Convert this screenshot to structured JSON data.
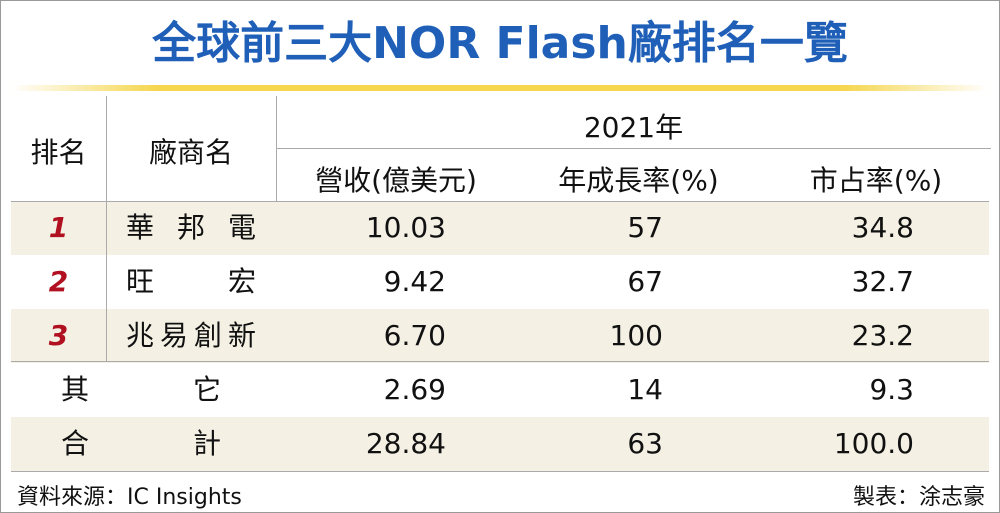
{
  "header": {
    "title": "全球前三大NOR Flash廠排名一覽"
  },
  "table": {
    "columns": [
      "排名",
      "廠商名",
      "2021年",
      "營收(億美元)",
      "年成長率(%)",
      "市占率(%)"
    ],
    "rows": [
      [
        "1",
        "華 邦 電",
        "10.03",
        "57",
        "34.8"
      ],
      [
        "2",
        "旺　　宏",
        "9.42",
        "67",
        "32.7"
      ],
      [
        "3",
        "兆易創新",
        "6.70",
        "100",
        "23.2"
      ]
    ],
    "summary": [
      [
        "其　　它",
        "2.69",
        "14",
        "9.3"
      ],
      [
        "合　　計",
        "28.84",
        "63",
        "100.0"
      ]
    ]
  },
  "footer": {
    "source": "資料來源：IC Insights",
    "author": "製表：涂志豪"
  }
}
